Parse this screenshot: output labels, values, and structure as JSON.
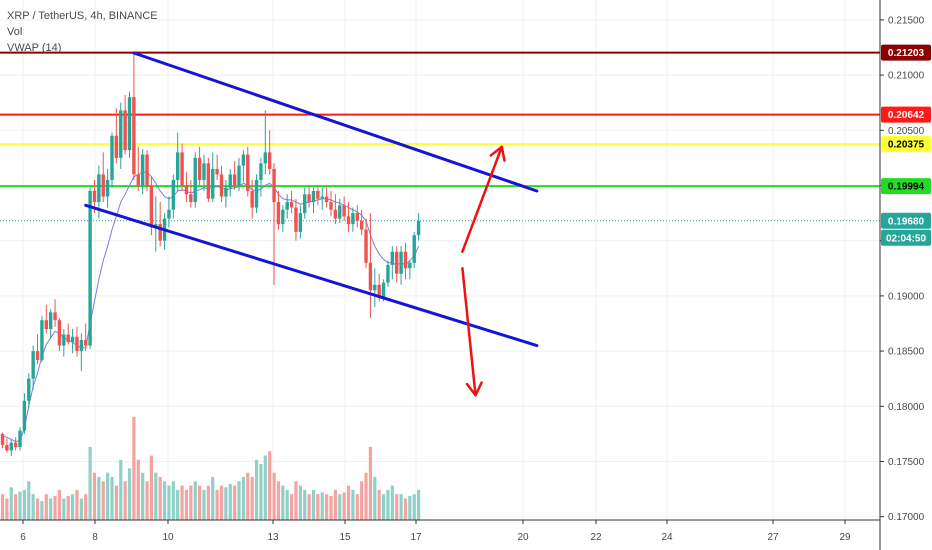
{
  "header": {
    "symbol": "XRP / TetherUS, 4h, BINANCE",
    "vol_label": "Vol",
    "vwap_label": "VWAP (14)"
  },
  "price_tags": [
    {
      "value": 0.21203,
      "label": "0.21203",
      "bg": "#8b0000",
      "fg": "#ffffff"
    },
    {
      "value": 0.20642,
      "label": "0.20642",
      "bg": "#ff1a1a",
      "fg": "#ffffff"
    },
    {
      "value": 0.20375,
      "label": "0.20375",
      "bg": "#ffff33",
      "fg": "#000000"
    },
    {
      "value": 0.19994,
      "label": "0.19994",
      "bg": "#22dd22",
      "fg": "#000000"
    },
    {
      "value": 0.1968,
      "label": "0.19680",
      "bg": "#26a69a",
      "fg": "#ffffff"
    }
  ],
  "countdown": "02:04:50",
  "colors": {
    "up": "#26a69a",
    "down": "#ef5350",
    "vol_up": "#8fd0c7",
    "vol_down": "#f4a3a2",
    "vwap": "#7b7bdf",
    "channel": "#1515d8",
    "arrow": "#ee1111",
    "grid": "#eef0f3",
    "axis_text": "#4a4a4a"
  },
  "chart_data": {
    "type": "candlestick",
    "title": "XRP / TetherUS, 4h, BINANCE",
    "y_ticks": [
      "0.21500",
      "0.21000",
      "0.20500",
      "0.20000",
      "0.19500",
      "0.19000",
      "0.18500",
      "0.18000",
      "0.17500",
      "0.17000"
    ],
    "y_tick_values": [
      0.215,
      0.21,
      0.205,
      0.2,
      0.195,
      0.19,
      0.185,
      0.18,
      0.175,
      0.17
    ],
    "ylim": [
      0.1697,
      0.2168
    ],
    "x_ticks": [
      "6",
      "8",
      "10",
      "13",
      "15",
      "17",
      "20",
      "22",
      "24",
      "27",
      "29"
    ],
    "grid": true,
    "horizontal_levels": [
      {
        "value": 0.21203,
        "color": "#8b0000"
      },
      {
        "value": 0.20642,
        "color": "#ff1a1a"
      },
      {
        "value": 0.20375,
        "color": "#ffff33"
      },
      {
        "value": 0.19994,
        "color": "#22dd22"
      }
    ],
    "last_price": 0.1968,
    "candles": [
      [
        0.1775,
        0.1776,
        0.1762,
        0.1765,
        0.3
      ],
      [
        0.1765,
        0.1771,
        0.1758,
        0.176,
        0.25
      ],
      [
        0.176,
        0.177,
        0.1755,
        0.1767,
        0.38
      ],
      [
        0.1767,
        0.1772,
        0.176,
        0.1763,
        0.3
      ],
      [
        0.1763,
        0.1781,
        0.176,
        0.1778,
        0.33
      ],
      [
        0.1778,
        0.1812,
        0.1775,
        0.1805,
        0.35
      ],
      [
        0.1805,
        0.183,
        0.1798,
        0.1825,
        0.45
      ],
      [
        0.1825,
        0.1855,
        0.1815,
        0.185,
        0.3
      ],
      [
        0.185,
        0.1865,
        0.1838,
        0.1842,
        0.25
      ],
      [
        0.1842,
        0.1882,
        0.184,
        0.1878,
        0.22
      ],
      [
        0.1878,
        0.1892,
        0.1866,
        0.187,
        0.3
      ],
      [
        0.187,
        0.1888,
        0.1862,
        0.1885,
        0.25
      ],
      [
        0.1885,
        0.1897,
        0.1872,
        0.1878,
        0.28
      ],
      [
        0.1878,
        0.188,
        0.185,
        0.1855,
        0.35
      ],
      [
        0.1855,
        0.187,
        0.1845,
        0.1865,
        0.25
      ],
      [
        0.1865,
        0.1875,
        0.1856,
        0.1858,
        0.28
      ],
      [
        0.1858,
        0.187,
        0.1848,
        0.1863,
        0.3
      ],
      [
        0.1863,
        0.1872,
        0.1845,
        0.185,
        0.35
      ],
      [
        0.185,
        0.1866,
        0.1832,
        0.186,
        0.25
      ],
      [
        0.186,
        0.1875,
        0.185,
        0.1855,
        0.3
      ],
      [
        0.1855,
        0.1998,
        0.1852,
        0.1995,
        0.85
      ],
      [
        0.1995,
        0.2005,
        0.1975,
        0.1985,
        0.55
      ],
      [
        0.1985,
        0.2018,
        0.197,
        0.201,
        0.5
      ],
      [
        0.201,
        0.203,
        0.1985,
        0.199,
        0.45
      ],
      [
        0.199,
        0.2015,
        0.198,
        0.2005,
        0.55
      ],
      [
        0.2005,
        0.2048,
        0.1998,
        0.2045,
        0.5
      ],
      [
        0.2045,
        0.207,
        0.202,
        0.2025,
        0.4
      ],
      [
        0.2025,
        0.2075,
        0.2015,
        0.2068,
        0.7
      ],
      [
        0.2068,
        0.2082,
        0.2028,
        0.2032,
        0.45
      ],
      [
        0.2032,
        0.2085,
        0.2025,
        0.208,
        0.6
      ],
      [
        0.208,
        0.212,
        0.2005,
        0.201,
        1.2
      ],
      [
        0.201,
        0.2035,
        0.1995,
        0.2,
        0.7
      ],
      [
        0.2,
        0.2033,
        0.1992,
        0.2028,
        0.55
      ],
      [
        0.2028,
        0.2032,
        0.1995,
        0.2,
        0.45
      ],
      [
        0.2,
        0.2008,
        0.1955,
        0.1962,
        0.75
      ],
      [
        0.1962,
        0.199,
        0.194,
        0.1965,
        0.55
      ],
      [
        0.1965,
        0.1985,
        0.1945,
        0.195,
        0.5
      ],
      [
        0.195,
        0.1975,
        0.1942,
        0.197,
        0.45
      ],
      [
        0.197,
        0.199,
        0.1962,
        0.1978,
        0.4
      ],
      [
        0.1978,
        0.201,
        0.197,
        0.2005,
        0.45
      ],
      [
        0.2005,
        0.2048,
        0.1995,
        0.203,
        0.35
      ],
      [
        0.203,
        0.2038,
        0.1995,
        0.2,
        0.4
      ],
      [
        0.2,
        0.2012,
        0.1985,
        0.1992,
        0.35
      ],
      [
        0.1992,
        0.2005,
        0.198,
        0.1985,
        0.4
      ],
      [
        0.1985,
        0.203,
        0.198,
        0.2025,
        0.45
      ],
      [
        0.2025,
        0.2035,
        0.2,
        0.2005,
        0.4
      ],
      [
        0.2005,
        0.2028,
        0.1995,
        0.202,
        0.35
      ],
      [
        0.202,
        0.2025,
        0.1985,
        0.1988,
        0.4
      ],
      [
        0.1988,
        0.203,
        0.1985,
        0.2015,
        0.5
      ],
      [
        0.2015,
        0.2028,
        0.2005,
        0.201,
        0.35
      ],
      [
        0.201,
        0.2018,
        0.1985,
        0.199,
        0.4
      ],
      [
        0.199,
        0.2005,
        0.198,
        0.1998,
        0.38
      ],
      [
        0.1998,
        0.2015,
        0.199,
        0.201,
        0.42
      ],
      [
        0.201,
        0.2022,
        0.1996,
        0.2,
        0.4
      ],
      [
        0.2,
        0.2025,
        0.1995,
        0.2018,
        0.45
      ],
      [
        0.2018,
        0.2032,
        0.2003,
        0.2028,
        0.5
      ],
      [
        0.2028,
        0.2035,
        0.199,
        0.1995,
        0.55
      ],
      [
        0.1995,
        0.2005,
        0.197,
        0.198,
        0.5
      ],
      [
        0.198,
        0.201,
        0.1975,
        0.2005,
        0.7
      ],
      [
        0.2005,
        0.2025,
        0.199,
        0.202,
        0.65
      ],
      [
        0.202,
        0.2068,
        0.201,
        0.203,
        0.75
      ],
      [
        0.203,
        0.205,
        0.201,
        0.2015,
        0.8
      ],
      [
        0.2015,
        0.202,
        0.191,
        0.1985,
        0.55
      ],
      [
        0.1985,
        0.1995,
        0.196,
        0.1965,
        0.45
      ],
      [
        0.1965,
        0.1982,
        0.1958,
        0.1978,
        0.4
      ],
      [
        0.1978,
        0.1992,
        0.197,
        0.1985,
        0.35
      ],
      [
        0.1985,
        0.1995,
        0.1975,
        0.198,
        0.3
      ],
      [
        0.198,
        0.1988,
        0.195,
        0.1958,
        0.45
      ],
      [
        0.1958,
        0.1982,
        0.1952,
        0.1975,
        0.4
      ],
      [
        0.1975,
        0.1998,
        0.197,
        0.1992,
        0.35
      ],
      [
        0.1992,
        0.2,
        0.198,
        0.1985,
        0.3
      ],
      [
        0.1985,
        0.1998,
        0.1975,
        0.1995,
        0.35
      ],
      [
        0.1995,
        0.2,
        0.1982,
        0.1988,
        0.3
      ],
      [
        0.1988,
        0.1998,
        0.1978,
        0.199,
        0.32
      ],
      [
        0.199,
        0.1999,
        0.198,
        0.1985,
        0.3
      ],
      [
        0.1985,
        0.1995,
        0.1972,
        0.1978,
        0.28
      ],
      [
        0.1978,
        0.1992,
        0.1965,
        0.197,
        0.35
      ],
      [
        0.197,
        0.1988,
        0.1966,
        0.1982,
        0.3
      ],
      [
        0.1982,
        0.199,
        0.1968,
        0.1972,
        0.32
      ],
      [
        0.1972,
        0.1985,
        0.1958,
        0.1965,
        0.4
      ],
      [
        0.1965,
        0.198,
        0.1958,
        0.1975,
        0.35
      ],
      [
        0.1975,
        0.1982,
        0.1962,
        0.1968,
        0.3
      ],
      [
        0.1968,
        0.1978,
        0.1955,
        0.196,
        0.45
      ],
      [
        0.196,
        0.197,
        0.1925,
        0.193,
        0.55
      ],
      [
        0.193,
        0.1975,
        0.188,
        0.1905,
        0.85
      ],
      [
        0.1905,
        0.1925,
        0.189,
        0.191,
        0.5
      ],
      [
        0.191,
        0.192,
        0.1895,
        0.1898,
        0.35
      ],
      [
        0.1898,
        0.1915,
        0.1895,
        0.1912,
        0.3
      ],
      [
        0.1912,
        0.1932,
        0.1908,
        0.1928,
        0.35
      ],
      [
        0.1928,
        0.1945,
        0.1915,
        0.194,
        0.4
      ],
      [
        0.194,
        0.1945,
        0.1912,
        0.192,
        0.3
      ],
      [
        0.192,
        0.1945,
        0.191,
        0.194,
        0.3
      ],
      [
        0.194,
        0.1948,
        0.1915,
        0.1925,
        0.25
      ],
      [
        0.1925,
        0.1932,
        0.1915,
        0.193,
        0.28
      ],
      [
        0.193,
        0.1958,
        0.1925,
        0.1955,
        0.3
      ],
      [
        0.1955,
        0.1975,
        0.195,
        0.1968,
        0.35
      ]
    ],
    "vwap": [
      0.1773,
      0.1772,
      0.177,
      0.1768,
      0.1769,
      0.178,
      0.18,
      0.1818,
      0.183,
      0.1845,
      0.1856,
      0.1862,
      0.1868,
      0.1866,
      0.1862,
      0.186,
      0.1858,
      0.1855,
      0.1853,
      0.1853,
      0.1875,
      0.1895,
      0.1915,
      0.1932,
      0.1945,
      0.196,
      0.1972,
      0.1985,
      0.1992,
      0.2,
      0.2008,
      0.201,
      0.2012,
      0.2012,
      0.2008,
      0.2002,
      0.1995,
      0.199,
      0.1988,
      0.199,
      0.1995,
      0.1996,
      0.1995,
      0.1993,
      0.1995,
      0.1996,
      0.1998,
      0.1997,
      0.1998,
      0.1999,
      0.1998,
      0.1996,
      0.1997,
      0.1998,
      0.1999,
      0.2002,
      0.2,
      0.1996,
      0.1995,
      0.1997,
      0.2,
      0.2002,
      0.1998,
      0.1992,
      0.1988,
      0.1987,
      0.1987,
      0.1985,
      0.1983,
      0.1984,
      0.1985,
      0.1986,
      0.1987,
      0.1988,
      0.1988,
      0.1987,
      0.1985,
      0.1984,
      0.1982,
      0.198,
      0.1978,
      0.1976,
      0.1973,
      0.1968,
      0.1955,
      0.1945,
      0.1938,
      0.1933,
      0.193,
      0.193,
      0.1928,
      0.193,
      0.1928,
      0.1932,
      0.1936,
      0.1945
    ],
    "channel_lines": [
      {
        "from": [
          30,
          0.212
        ],
        "to": [
          122,
          0.1995
        ]
      },
      {
        "from": [
          19,
          0.1982
        ],
        "to": [
          122,
          0.1855
        ]
      }
    ],
    "arrows": [
      {
        "from": [
          105,
          0.194
        ],
        "to": [
          114,
          0.2035
        ]
      },
      {
        "from": [
          105,
          0.1925
        ],
        "to": [
          108,
          0.181
        ]
      }
    ]
  }
}
